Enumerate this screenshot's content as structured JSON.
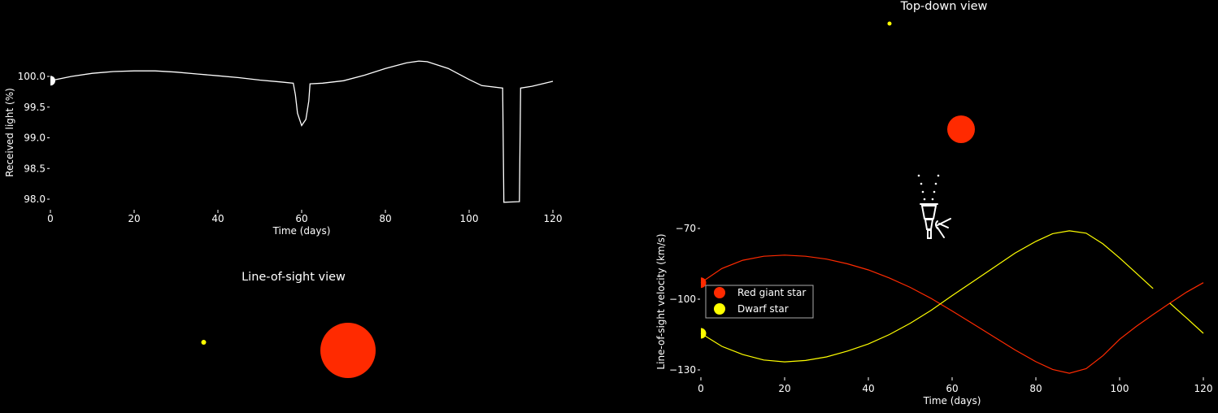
{
  "colors": {
    "background": "#000000",
    "red_giant": "#ff2a00",
    "dwarf": "#ffff00",
    "light_curve": "#ffffff"
  },
  "chart_data": [
    {
      "type": "line",
      "title": "",
      "xlabel": "Time (days)",
      "ylabel": "Received light (%)",
      "xlim": [
        0,
        120
      ],
      "ylim": [
        97.9,
        100.3
      ],
      "xticks": [
        "0",
        "20",
        "40",
        "60",
        "80",
        "100",
        "120"
      ],
      "yticks": [
        "98.0",
        "98.5",
        "99.0",
        "99.5",
        "100.0"
      ],
      "grid": false,
      "current_time": 0,
      "series": [
        {
          "x": [
            0,
            5,
            10,
            15,
            20,
            25,
            30,
            35,
            40,
            45,
            50,
            55,
            58,
            58.5,
            59,
            60,
            61,
            61.7,
            62,
            65,
            70,
            75,
            80,
            85,
            88,
            90,
            95,
            100,
            103,
            108,
            108.3,
            112,
            112.3,
            115,
            120
          ],
          "y": [
            99.93,
            100.0,
            100.05,
            100.08,
            100.09,
            100.09,
            100.07,
            100.04,
            100.01,
            99.98,
            99.94,
            99.91,
            99.89,
            99.7,
            99.4,
            99.2,
            99.3,
            99.6,
            99.88,
            99.89,
            99.93,
            100.02,
            100.13,
            100.22,
            100.25,
            100.24,
            100.13,
            99.95,
            99.85,
            99.81,
            97.95,
            97.96,
            99.81,
            99.84,
            99.92
          ]
        }
      ]
    },
    {
      "type": "line",
      "title": "",
      "xlabel": "Time (days)",
      "ylabel": "Line-of-sight velocity (km/s)",
      "xlim": [
        0,
        120
      ],
      "ylim": [
        -132,
        -70
      ],
      "xticks": [
        "0",
        "20",
        "40",
        "60",
        "80",
        "100",
        "120"
      ],
      "yticks": [
        "−70",
        "−100",
        "−130"
      ],
      "ytick_values": [
        -70,
        -100,
        -130
      ],
      "grid": false,
      "legend": "center-left",
      "current_time": 0,
      "series": [
        {
          "name": "Red giant star",
          "color": "#ff2a00",
          "x": [
            0,
            5,
            10,
            15,
            20,
            25,
            30,
            35,
            40,
            45,
            50,
            55,
            60,
            65,
            70,
            75,
            80,
            84,
            88,
            92,
            96,
            100,
            104,
            108,
            112,
            116,
            120
          ],
          "y": [
            -93,
            -87,
            -83.5,
            -81.8,
            -81.3,
            -81.8,
            -83,
            -85,
            -87.6,
            -91,
            -95,
            -99.7,
            -105,
            -110.5,
            -116,
            -121.5,
            -126.5,
            -129.8,
            -131.4,
            -129.5,
            -124,
            -117,
            -111.5,
            -106.5,
            -101.7,
            -97,
            -93
          ]
        },
        {
          "name": "Dwarf star",
          "color": "#ffff00",
          "segments": [
            {
              "x": [
                0,
                5,
                10,
                15,
                20,
                25,
                30,
                35,
                40,
                45,
                50,
                55,
                60,
                65,
                70,
                75,
                80,
                84,
                88,
                92,
                96,
                100,
                104,
                108
              ],
              "y": [
                -114.5,
                -120,
                -123.5,
                -125.8,
                -126.6,
                -126,
                -124.5,
                -122,
                -119,
                -115,
                -110.2,
                -104.7,
                -98.5,
                -92.5,
                -86.5,
                -80.5,
                -75.5,
                -72.2,
                -71,
                -72,
                -76.5,
                -82.5,
                -89,
                -95.5
              ]
            },
            {
              "x": [
                112,
                116,
                120
              ],
              "y": [
                -101.7,
                -108,
                -114.5
              ]
            }
          ]
        }
      ]
    }
  ],
  "views": {
    "top_down": {
      "title": "Top-down view"
    },
    "line_of_sight": {
      "title": "Line-of-sight view"
    }
  },
  "icons": {
    "observer": "telescope-with-person-icon"
  }
}
